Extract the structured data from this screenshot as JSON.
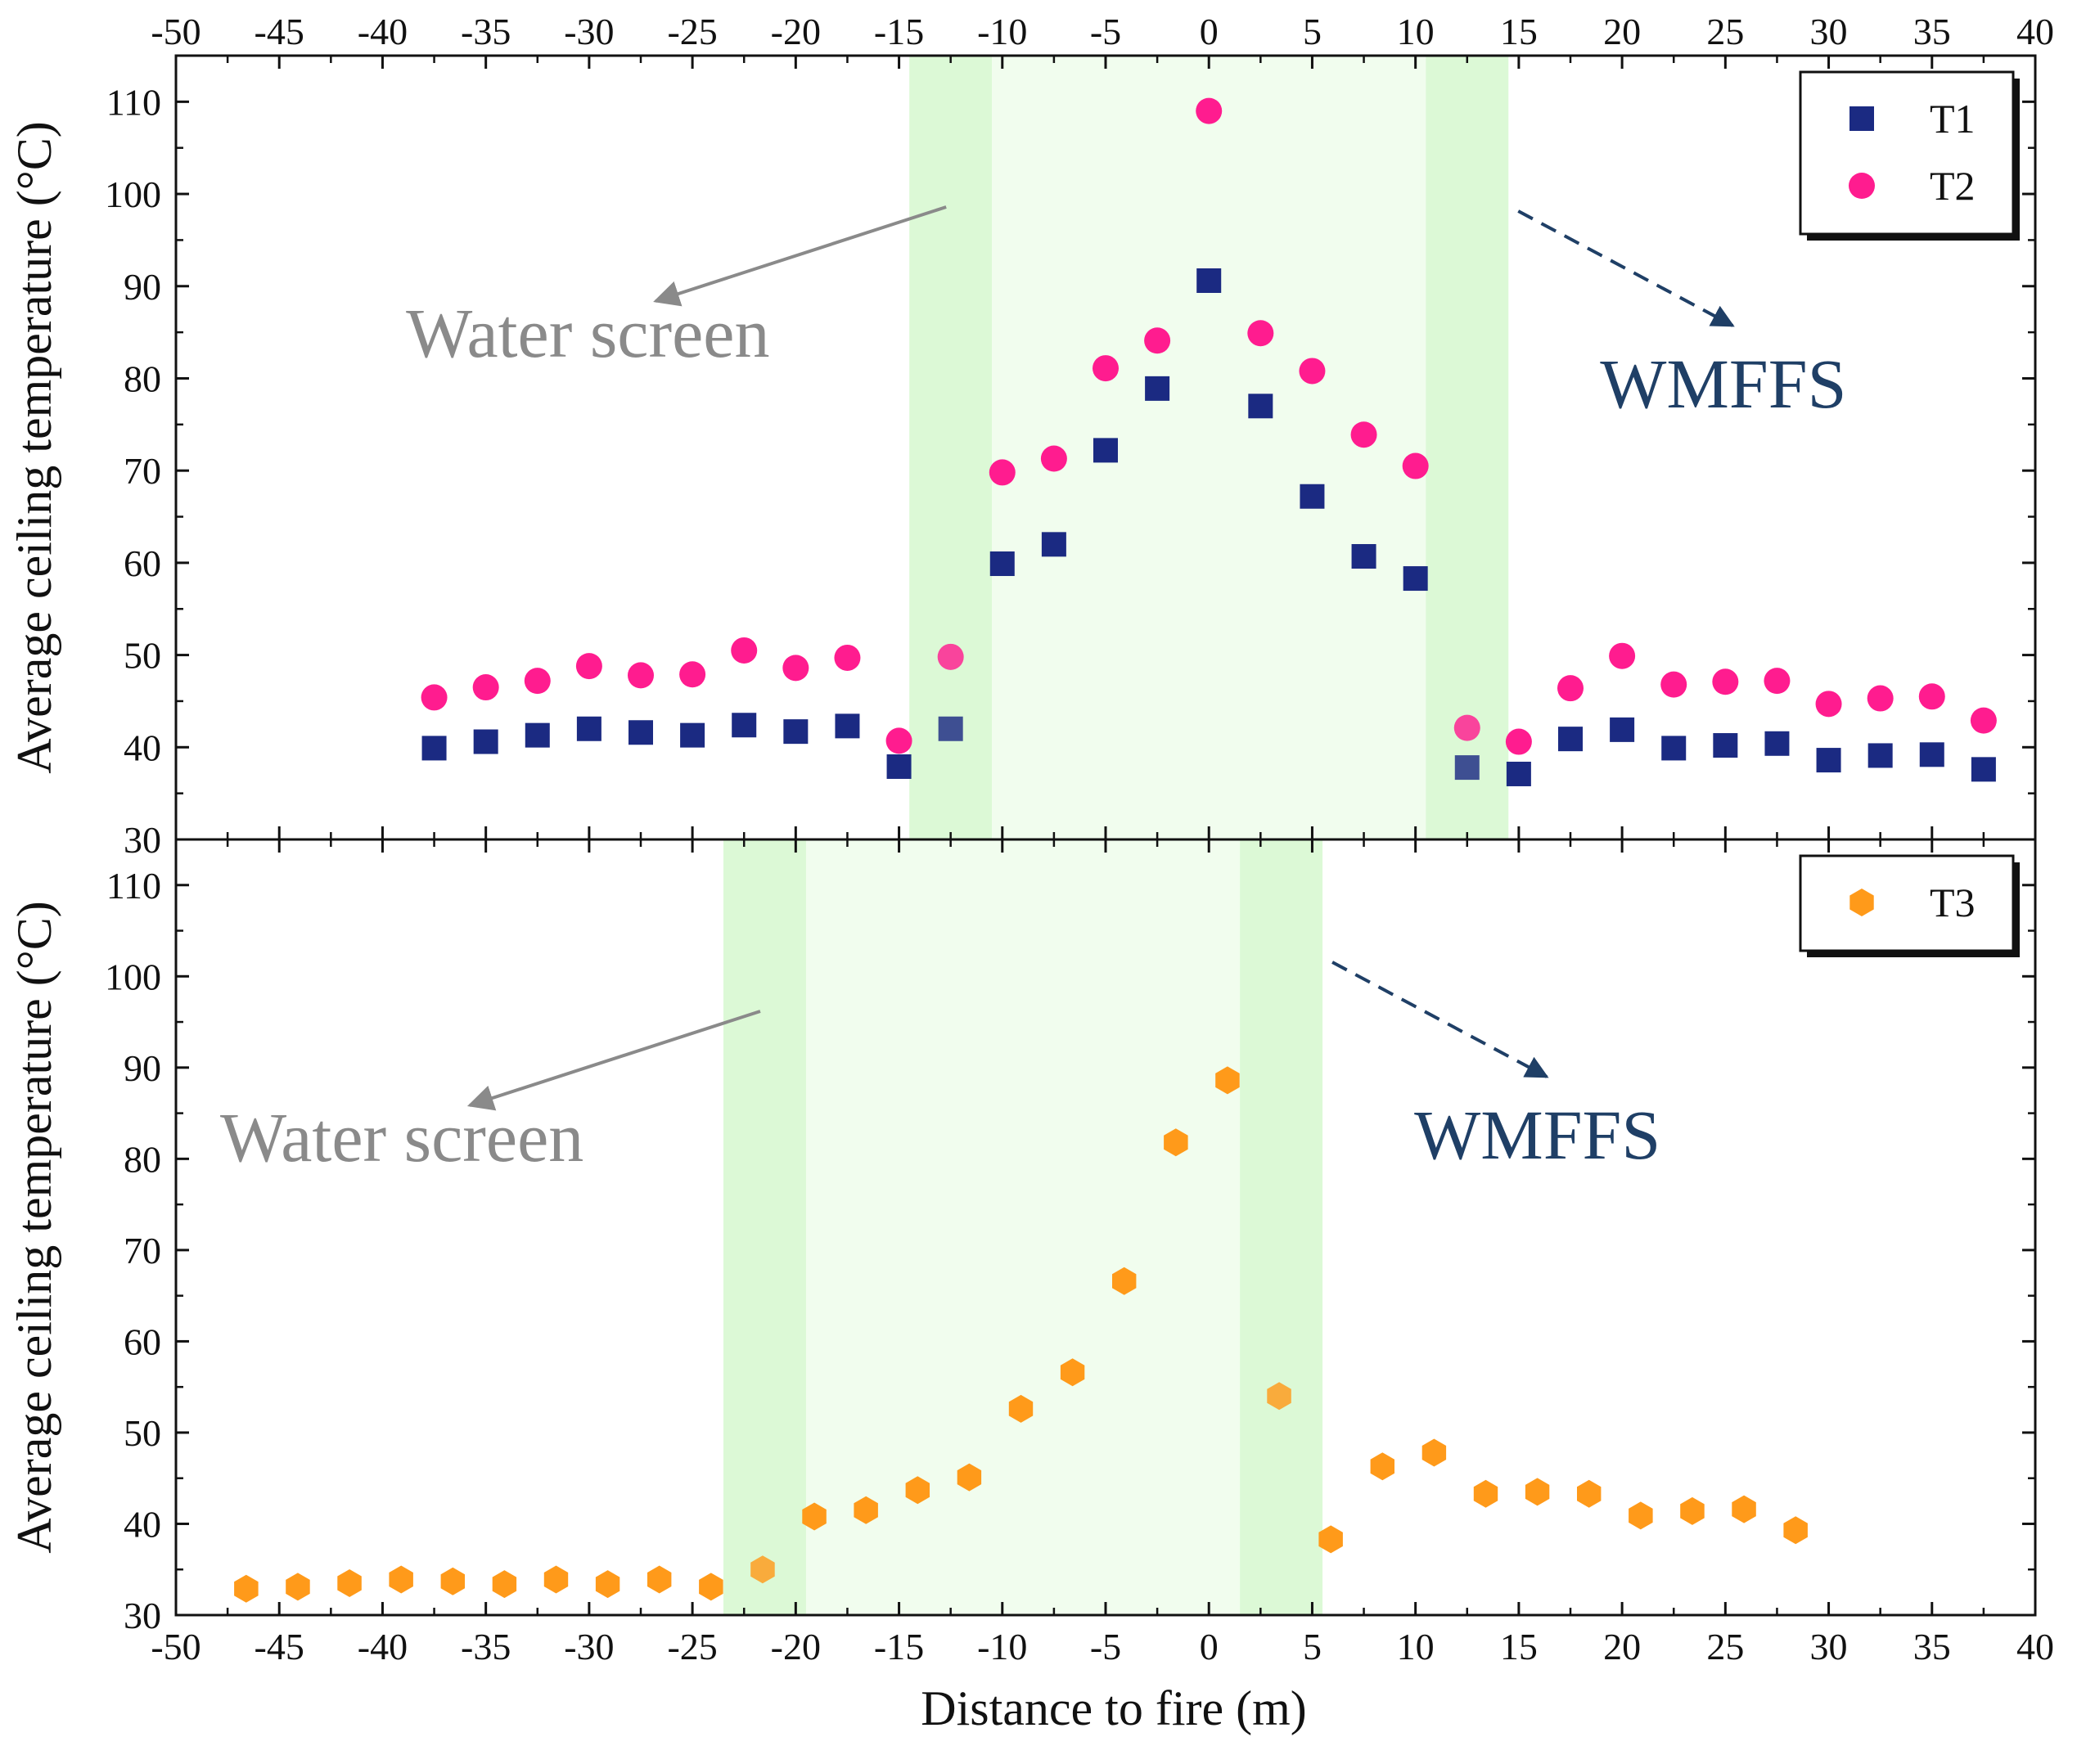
{
  "chart_data": [
    {
      "type": "scatter",
      "panel": "top",
      "ylabel": "Average ceiling temperature (°C)",
      "xlim": [
        -50,
        40
      ],
      "ylim": [
        30,
        115
      ],
      "x_ticks": [
        "-50",
        "-45",
        "-40",
        "-35",
        "-30",
        "-25",
        "-20",
        "-15",
        "-10",
        "-5",
        "0",
        "5",
        "10",
        "15",
        "20",
        "25",
        "30",
        "35",
        "40"
      ],
      "y_ticks": [
        "30",
        "40",
        "50",
        "60",
        "70",
        "80",
        "90",
        "100",
        "110"
      ],
      "tick_labels_top": true,
      "legend_position": "top-right",
      "shaded_regions": [
        {
          "kind": "water-screen",
          "x_start": -14.5,
          "x_end": -10.5
        },
        {
          "kind": "zone",
          "x_start": -10.5,
          "x_end": 10.5
        },
        {
          "kind": "wmffs",
          "x_start": 10.5,
          "x_end": 14.5
        }
      ],
      "annotations": [
        {
          "text": "Water screen",
          "kind": "water"
        },
        {
          "text": "WMFFS",
          "kind": "wmffs"
        }
      ],
      "series": [
        {
          "name": "T1",
          "marker": "square",
          "color": "#1b2a82",
          "x": [
            -37.5,
            -35,
            -32.5,
            -30,
            -27.5,
            -25,
            -22.5,
            -20,
            -17.5,
            -15,
            -12.5,
            -10,
            -7.5,
            -5,
            -2.5,
            0,
            2.5,
            5,
            7.5,
            10,
            12.5,
            15,
            17.5,
            20,
            22.5,
            25,
            27.5,
            30,
            32.5,
            35,
            37.5
          ],
          "y": [
            39.9,
            40.6,
            41.3,
            42.0,
            41.6,
            41.3,
            42.4,
            41.7,
            42.3,
            37.9,
            42.0,
            59.9,
            62.0,
            72.2,
            78.9,
            90.6,
            77.0,
            67.2,
            60.7,
            58.3,
            37.8,
            37.1,
            40.9,
            41.9,
            39.9,
            40.2,
            40.4,
            38.6,
            39.1,
            39.2,
            37.6
          ]
        },
        {
          "name": "T2",
          "marker": "circle",
          "color": "#ff1c8f",
          "x": [
            -37.5,
            -35,
            -32.5,
            -30,
            -27.5,
            -25,
            -22.5,
            -20,
            -17.5,
            -15,
            -12.5,
            -10,
            -7.5,
            -5,
            -2.5,
            0,
            2.5,
            5,
            7.5,
            10,
            12.5,
            15,
            17.5,
            20,
            22.5,
            25,
            27.5,
            30,
            32.5,
            35,
            37.5
          ],
          "y": [
            45.4,
            46.5,
            47.2,
            48.8,
            47.8,
            47.9,
            50.5,
            48.6,
            49.7,
            40.7,
            49.8,
            69.8,
            71.3,
            81.1,
            84.1,
            109.0,
            84.9,
            80.8,
            73.9,
            70.5,
            42.1,
            40.6,
            46.4,
            49.9,
            46.8,
            47.1,
            47.2,
            44.7,
            45.3,
            45.5,
            42.9
          ]
        }
      ]
    },
    {
      "type": "scatter",
      "panel": "bottom",
      "xlabel": "Distance to fire (m)",
      "ylabel": "Average ceiling temperature (°C)",
      "xlim": [
        -50,
        40
      ],
      "ylim": [
        30,
        115
      ],
      "x_ticks": [
        "-50",
        "-45",
        "-40",
        "-35",
        "-30",
        "-25",
        "-20",
        "-15",
        "-10",
        "-5",
        "0",
        "5",
        "10",
        "15",
        "20",
        "25",
        "30",
        "35",
        "40"
      ],
      "y_ticks": [
        "30",
        "40",
        "50",
        "60",
        "70",
        "80",
        "90",
        "100",
        "110"
      ],
      "legend_position": "top-right",
      "shaded_regions": [
        {
          "kind": "water-screen",
          "x_start": -23.5,
          "x_end": -19.5
        },
        {
          "kind": "zone",
          "x_start": -19.5,
          "x_end": 1.5
        },
        {
          "kind": "wmffs",
          "x_start": 1.5,
          "x_end": 5.5
        }
      ],
      "annotations": [
        {
          "text": "Water screen",
          "kind": "water"
        },
        {
          "text": "WMFFS",
          "kind": "wmffs"
        }
      ],
      "series": [
        {
          "name": "T3",
          "marker": "hexagon",
          "color": "#ff9a1a",
          "x": [
            -46.6,
            -44.1,
            -41.6,
            -39.1,
            -36.6,
            -34.1,
            -31.6,
            -29.1,
            -26.6,
            -24.1,
            -21.6,
            -19.1,
            -16.6,
            -14.1,
            -11.6,
            -9.1,
            -6.6,
            -4.1,
            -1.6,
            0.9,
            3.4,
            5.9,
            8.4,
            10.9,
            13.4,
            15.9,
            18.4,
            20.9,
            23.4,
            25.9,
            28.4
          ],
          "y": [
            32.9,
            33.1,
            33.5,
            33.9,
            33.7,
            33.4,
            33.9,
            33.4,
            33.9,
            33.1,
            35.0,
            40.8,
            41.5,
            43.7,
            45.1,
            52.6,
            56.6,
            66.6,
            81.8,
            88.6,
            54.0,
            38.3,
            46.3,
            47.8,
            43.3,
            43.5,
            43.3,
            40.9,
            41.4,
            41.6,
            39.3
          ]
        }
      ]
    }
  ]
}
